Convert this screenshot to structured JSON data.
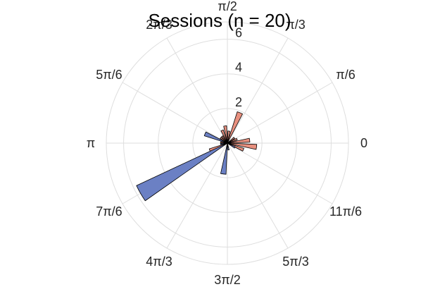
{
  "chart_data": {
    "type": "polar-rose",
    "title": "Sessions (n = 20)",
    "r_max": 7,
    "r_ticks": [
      2,
      4,
      6
    ],
    "r_tick_labels": [
      "2",
      "4",
      "6"
    ],
    "theta_ticks_deg": [
      0,
      30,
      60,
      90,
      120,
      150,
      180,
      210,
      240,
      270,
      300,
      330
    ],
    "theta_tick_labels": [
      "0",
      "π/6",
      "π/3",
      "π/2",
      "2π/3",
      "5π/6",
      "π",
      "7π/6",
      "4π/3",
      "3π/2",
      "5π/3",
      "11π/6"
    ],
    "grid": true,
    "series": [
      {
        "color": "#e8907f",
        "bars": [
          {
            "theta": 7.5,
            "r": 1.3
          },
          {
            "theta": 22.5,
            "r": 0.6
          },
          {
            "theta": 37.5,
            "r": 0.5
          },
          {
            "theta": 67.5,
            "r": 1.9
          },
          {
            "theta": 82.5,
            "r": 0.7
          },
          {
            "theta": 97.5,
            "r": 1.0
          },
          {
            "theta": 112.5,
            "r": 0.8
          },
          {
            "theta": 127.5,
            "r": 0.5
          },
          {
            "theta": 142.5,
            "r": 0.5
          },
          {
            "theta": 172.5,
            "r": 0.4
          },
          {
            "theta": 202.5,
            "r": 1.1
          },
          {
            "theta": 337.5,
            "r": 1.0
          },
          {
            "theta": 352.5,
            "r": 1.7
          }
        ]
      },
      {
        "color": "#6b80c4",
        "bars": [
          {
            "theta": 157.5,
            "r": 1.4
          },
          {
            "theta": 187.5,
            "r": 0.4
          },
          {
            "theta": 210,
            "r": 5.8
          },
          {
            "theta": 262.5,
            "r": 1.8
          },
          {
            "theta": 280,
            "r": 0.4
          },
          {
            "theta": 330,
            "r": 0.5
          }
        ]
      }
    ]
  }
}
